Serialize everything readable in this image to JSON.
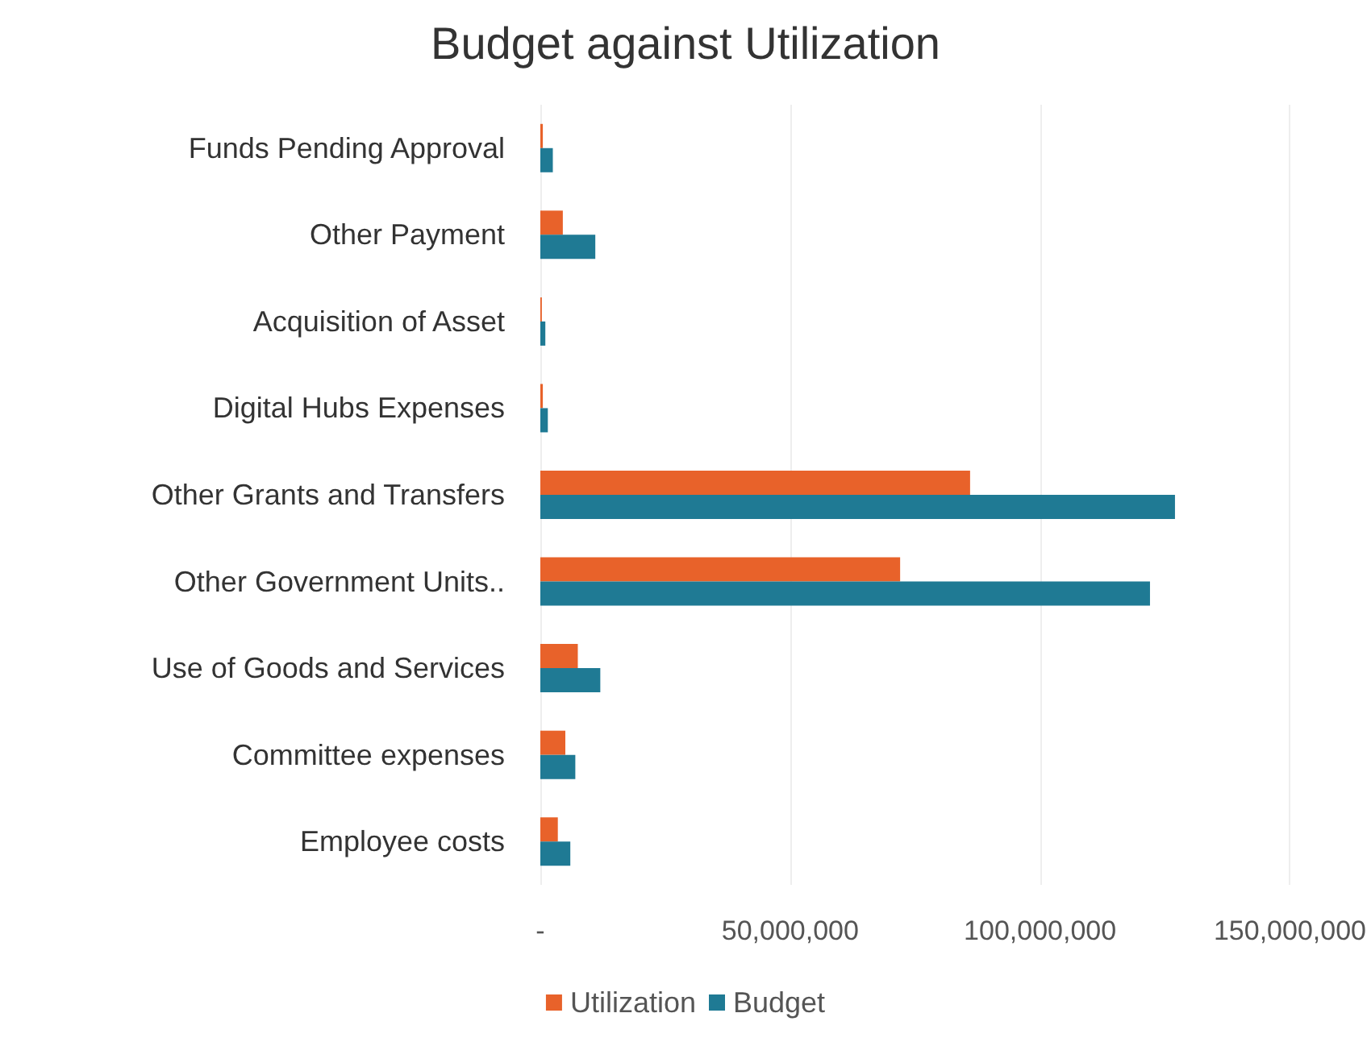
{
  "chart_data": {
    "type": "bar",
    "orientation": "horizontal",
    "title": "Budget against Utilization",
    "categories": [
      "Funds Pending Approval",
      "Other Payment",
      "Acquisition of Asset",
      "Digital Hubs Expenses",
      "Other Grants and Transfers",
      "Other Government Units..",
      "Use of Goods and Services",
      "Committee expenses",
      "Employee costs"
    ],
    "series": [
      {
        "name": "Utilization",
        "color": "#e8622a",
        "values": [
          500000,
          4500000,
          300000,
          500000,
          86000000,
          72000000,
          7500000,
          5000000,
          3500000
        ]
      },
      {
        "name": "Budget",
        "color": "#1f7a94",
        "values": [
          2500000,
          11000000,
          1000000,
          1500000,
          127000000,
          122000000,
          12000000,
          7000000,
          6000000
        ]
      }
    ],
    "xlim": [
      0,
      150000000
    ],
    "xticks": [
      {
        "value": 0,
        "label": "-"
      },
      {
        "value": 50000000,
        "label": "50,000,000"
      },
      {
        "value": 100000000,
        "label": "100,000,000"
      },
      {
        "value": 150000000,
        "label": "150,000,000"
      }
    ],
    "grid": "x",
    "legend": "bottom"
  }
}
